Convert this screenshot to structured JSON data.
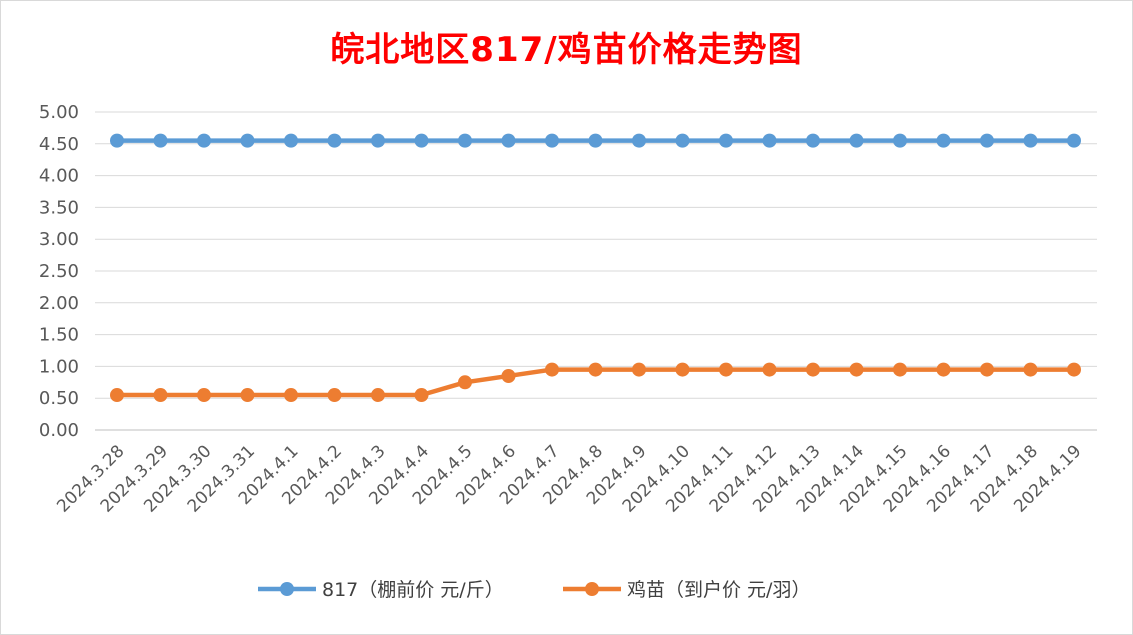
{
  "chart_data": {
    "type": "line",
    "title": "皖北地区817/鸡苗价格走势图",
    "categories": [
      "2024.3.28",
      "2024.3.29",
      "2024.3.30",
      "2024.3.31",
      "2024.4.1",
      "2024.4.2",
      "2024.4.3",
      "2024.4.4",
      "2024.4.5",
      "2024.4.6",
      "2024.4.7",
      "2024.4.8",
      "2024.4.9",
      "2024.4.10",
      "2024.4.11",
      "2024.4.12",
      "2024.4.13",
      "2024.4.14",
      "2024.4.15",
      "2024.4.16",
      "2024.4.17",
      "2024.4.18",
      "2024.4.19"
    ],
    "series": [
      {
        "name": "817（棚前价 元/斤）",
        "color": "#5b9bd5",
        "values": [
          4.55,
          4.55,
          4.55,
          4.55,
          4.55,
          4.55,
          4.55,
          4.55,
          4.55,
          4.55,
          4.55,
          4.55,
          4.55,
          4.55,
          4.55,
          4.55,
          4.55,
          4.55,
          4.55,
          4.55,
          4.55,
          4.55,
          4.55
        ]
      },
      {
        "name": "鸡苗（到户价 元/羽）",
        "color": "#ed7d31",
        "values": [
          0.55,
          0.55,
          0.55,
          0.55,
          0.55,
          0.55,
          0.55,
          0.55,
          0.75,
          0.85,
          0.95,
          0.95,
          0.95,
          0.95,
          0.95,
          0.95,
          0.95,
          0.95,
          0.95,
          0.95,
          0.95,
          0.95,
          0.95
        ]
      }
    ],
    "ylim": [
      0,
      5
    ],
    "yticks": [
      "0.00",
      "0.50",
      "1.00",
      "1.50",
      "2.00",
      "2.50",
      "3.00",
      "3.50",
      "4.00",
      "4.50",
      "5.00"
    ],
    "grid": true,
    "legend_position": "bottom",
    "title_color": "#ff0000"
  }
}
